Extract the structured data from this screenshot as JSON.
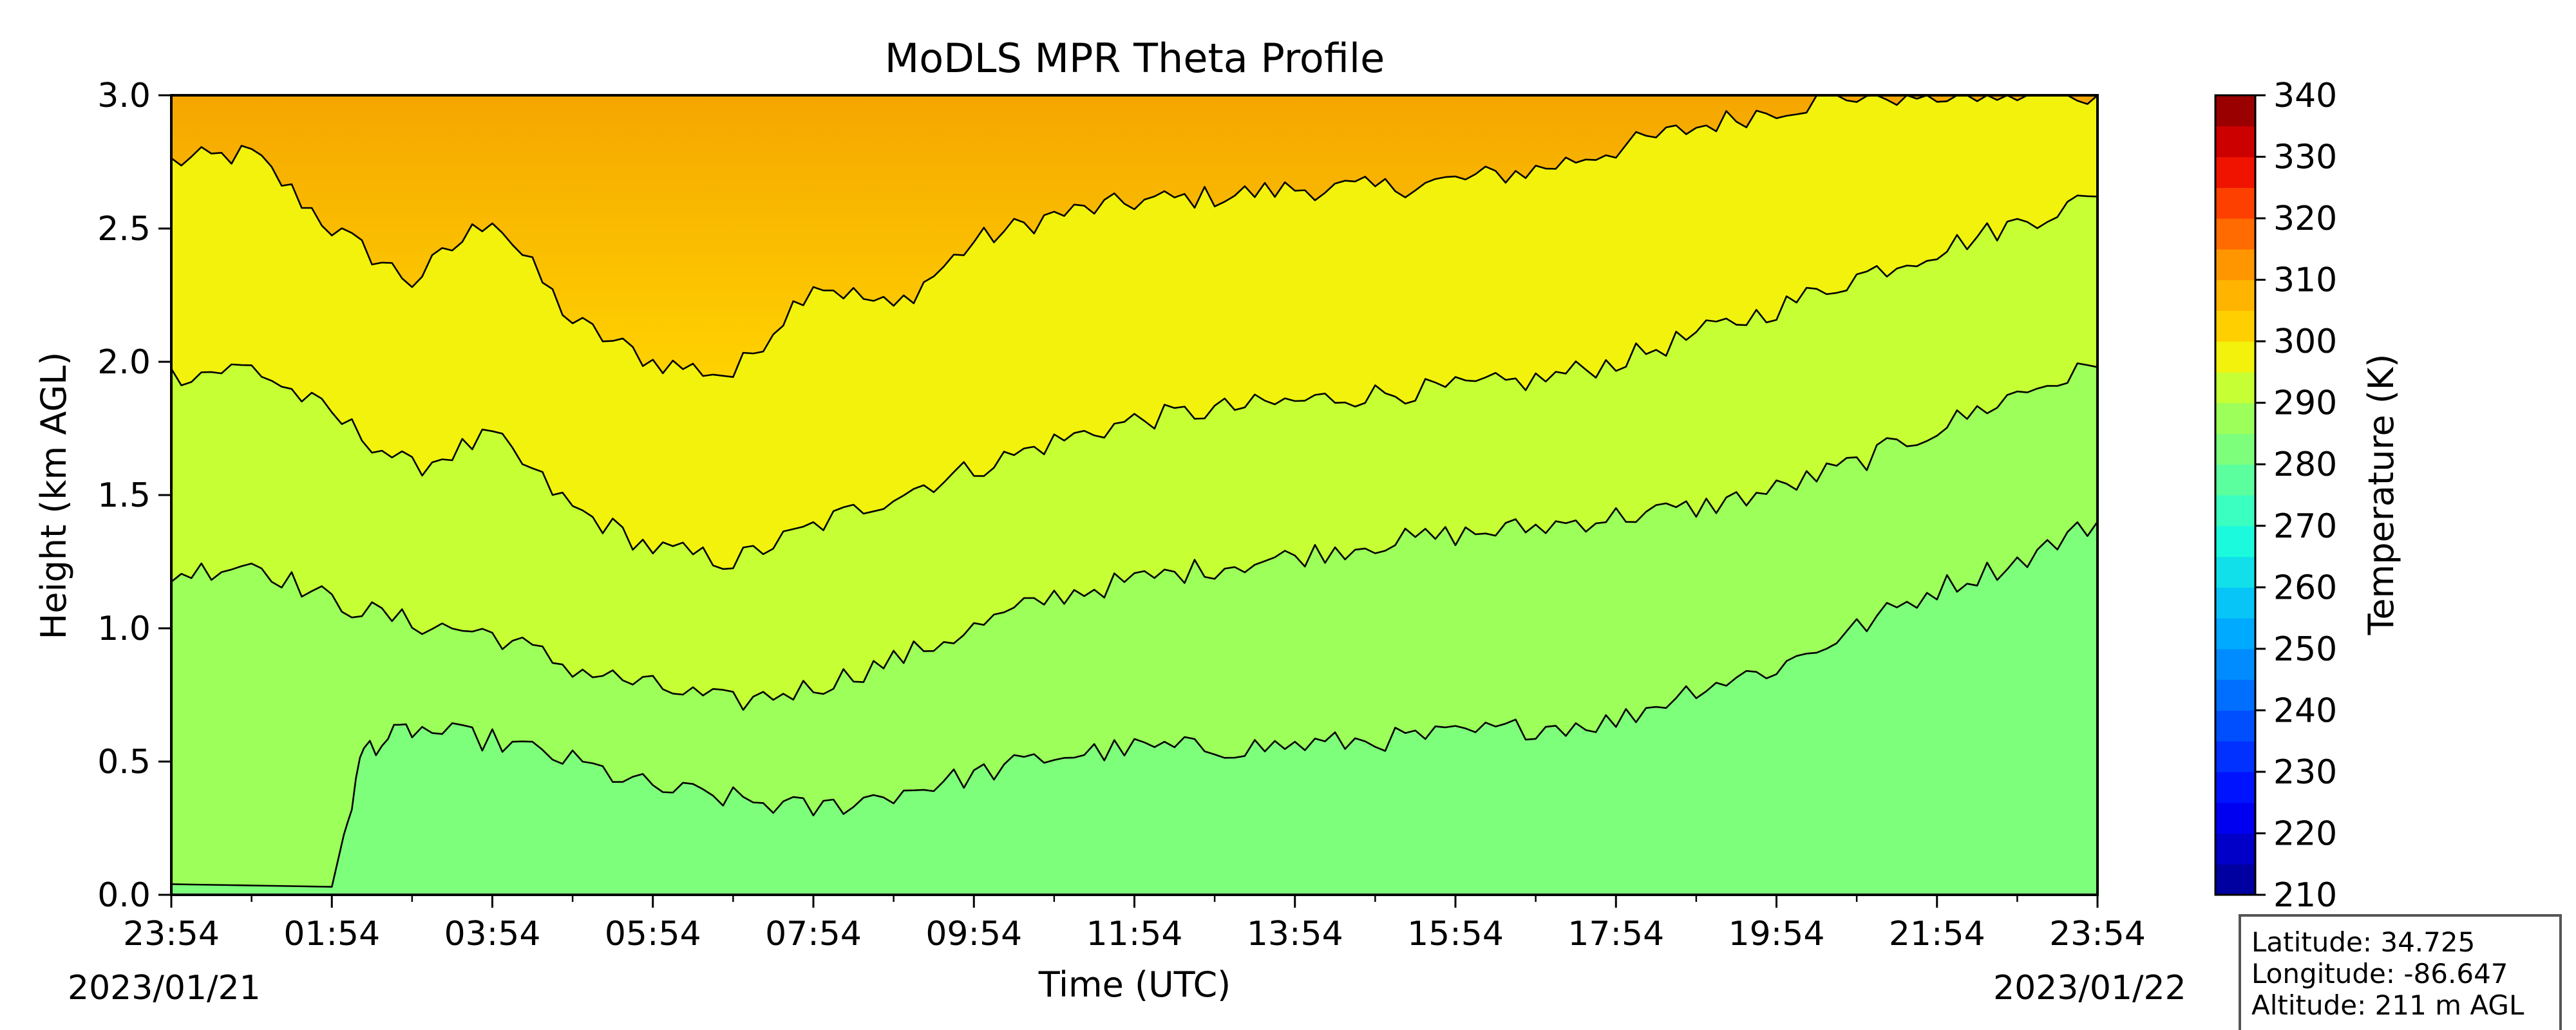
{
  "chart_data": {
    "type": "heatmap",
    "title": "MoDLS MPR Theta Profile",
    "xlabel": "Time (UTC)",
    "ylabel": "Height (km AGL)",
    "x_ticks": [
      "23:54",
      "01:54",
      "03:54",
      "05:54",
      "07:54",
      "09:54",
      "11:54",
      "13:54",
      "15:54",
      "17:54",
      "19:54",
      "21:54",
      "23:54"
    ],
    "x_range_hours": [
      0,
      24
    ],
    "y_ticks": [
      "0.0",
      "0.5",
      "1.0",
      "1.5",
      "2.0",
      "2.5",
      "3.0"
    ],
    "ylim": [
      0,
      3.0
    ],
    "start_date": "2023/01/21",
    "end_date": "2023/01/22",
    "colorbar": {
      "label": "Temperature (K)",
      "range": [
        210,
        340
      ],
      "step": 5,
      "ticks": [
        "210",
        "220",
        "230",
        "240",
        "250",
        "260",
        "270",
        "280",
        "290",
        "300",
        "310",
        "320",
        "330",
        "340"
      ]
    },
    "contour_levels_k": [
      285,
      290,
      295,
      300
    ],
    "contours": [
      {
        "level": 285,
        "time_h": [
          0,
          2,
          2.4,
          3,
          4,
          5,
          6,
          7,
          8,
          9,
          10,
          11,
          12,
          13,
          14,
          15,
          16,
          17,
          18,
          19,
          20,
          21,
          22,
          23,
          24
        ],
        "height_km": [
          0.04,
          0.03,
          0.55,
          0.62,
          0.58,
          0.5,
          0.4,
          0.36,
          0.32,
          0.38,
          0.45,
          0.52,
          0.55,
          0.55,
          0.56,
          0.58,
          0.6,
          0.63,
          0.65,
          0.78,
          0.85,
          1.0,
          1.15,
          1.25,
          1.4
        ]
      },
      {
        "level": 290,
        "time_h": [
          0,
          1,
          2,
          3,
          4,
          5,
          6,
          7,
          8,
          9,
          10,
          11,
          12,
          13,
          14,
          15,
          16,
          17,
          18,
          19,
          20,
          21,
          22,
          23,
          24
        ],
        "height_km": [
          1.2,
          1.25,
          1.1,
          1.02,
          0.98,
          0.85,
          0.78,
          0.72,
          0.78,
          0.88,
          1.0,
          1.12,
          1.18,
          1.23,
          1.27,
          1.32,
          1.35,
          1.38,
          1.42,
          1.45,
          1.52,
          1.62,
          1.75,
          1.88,
          1.98
        ]
      },
      {
        "level": 295,
        "time_h": [
          0,
          1,
          2,
          3,
          4,
          5,
          6,
          7,
          8,
          9,
          10,
          11,
          12,
          13,
          14,
          15,
          16,
          17,
          18,
          19,
          20,
          21,
          22,
          23,
          24
        ],
        "height_km": [
          1.95,
          1.98,
          1.8,
          1.6,
          1.72,
          1.45,
          1.3,
          1.25,
          1.38,
          1.5,
          1.6,
          1.7,
          1.78,
          1.82,
          1.85,
          1.88,
          1.9,
          1.93,
          2.0,
          2.1,
          2.2,
          2.32,
          2.42,
          2.52,
          2.62
        ]
      },
      {
        "level": 300,
        "time_h": [
          0,
          1,
          2,
          3,
          4,
          5,
          6,
          7,
          8,
          9,
          10,
          11,
          12,
          13,
          14,
          15,
          16,
          17,
          18,
          19,
          20,
          21,
          22,
          23,
          24
        ],
        "height_km": [
          2.75,
          2.78,
          2.5,
          2.3,
          2.55,
          2.15,
          2.0,
          1.95,
          2.3,
          2.2,
          2.45,
          2.55,
          2.6,
          2.62,
          2.65,
          2.65,
          2.68,
          2.72,
          2.8,
          2.88,
          2.95,
          3.0,
          3.0,
          3.0,
          3.0
        ]
      }
    ],
    "grid": false,
    "colorbar_position": "right"
  },
  "station_info": {
    "latitude": "Latitude: 34.725",
    "longitude": "Longitude: -86.647",
    "altitude": "Altitude: 211 m AGL"
  }
}
